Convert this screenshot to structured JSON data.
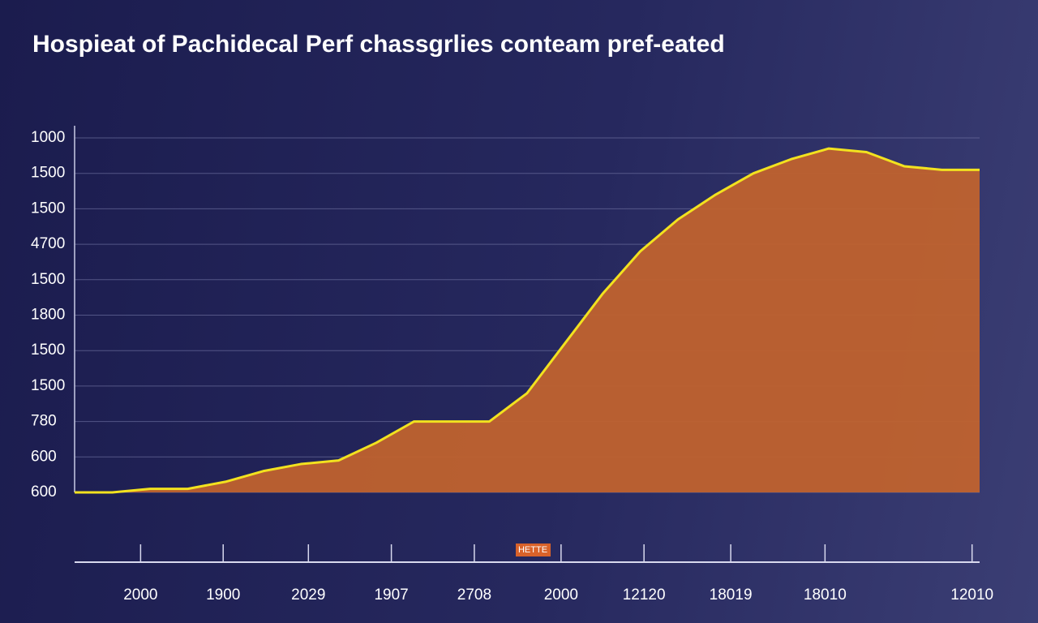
{
  "chart_data": {
    "type": "area",
    "title": "Hospieat of Pachidecal Perf chassgrlies conteam pref-eated",
    "annotation": "HETTE",
    "x": [
      0,
      1,
      2,
      3,
      4,
      5,
      6,
      7,
      8,
      9,
      10,
      11,
      12,
      13,
      14,
      15,
      16,
      17,
      18,
      19,
      20,
      21,
      22,
      23,
      24
    ],
    "values": [
      0.0,
      0.0,
      0.1,
      0.1,
      0.3,
      0.6,
      0.8,
      0.9,
      1.4,
      2.0,
      2.0,
      2.0,
      2.8,
      4.2,
      5.6,
      6.8,
      7.7,
      8.4,
      9.0,
      9.4,
      9.7,
      9.6,
      9.2,
      9.1,
      9.1
    ],
    "color": "#c0622e",
    "line_color": "#f2e21f",
    "xlim": [
      0,
      24
    ],
    "xticks": [
      {
        "value": 1.75,
        "label": "2000"
      },
      {
        "value": 3.94,
        "label": "1900"
      },
      {
        "value": 6.2,
        "label": "2029"
      },
      {
        "value": 8.4,
        "label": "1907"
      },
      {
        "value": 10.6,
        "label": "2708"
      },
      {
        "value": 12.9,
        "label": "2000"
      },
      {
        "value": 15.1,
        "label": "12120"
      },
      {
        "value": 17.4,
        "label": "18019"
      },
      {
        "value": 19.9,
        "label": "18010"
      },
      {
        "value": 23.8,
        "label": "12010"
      }
    ],
    "ylim": [
      0,
      10
    ],
    "yticks": [
      {
        "value": 0,
        "label": "600"
      },
      {
        "value": 1,
        "label": "600"
      },
      {
        "value": 2,
        "label": "780"
      },
      {
        "value": 3,
        "label": "1500"
      },
      {
        "value": 4,
        "label": "1500"
      },
      {
        "value": 5,
        "label": "1800"
      },
      {
        "value": 6,
        "label": "1500"
      },
      {
        "value": 7,
        "label": "4700"
      },
      {
        "value": 8,
        "label": "1500"
      },
      {
        "value": 9,
        "label": "1500"
      },
      {
        "value": 10,
        "label": "1000"
      }
    ],
    "grid": true
  }
}
